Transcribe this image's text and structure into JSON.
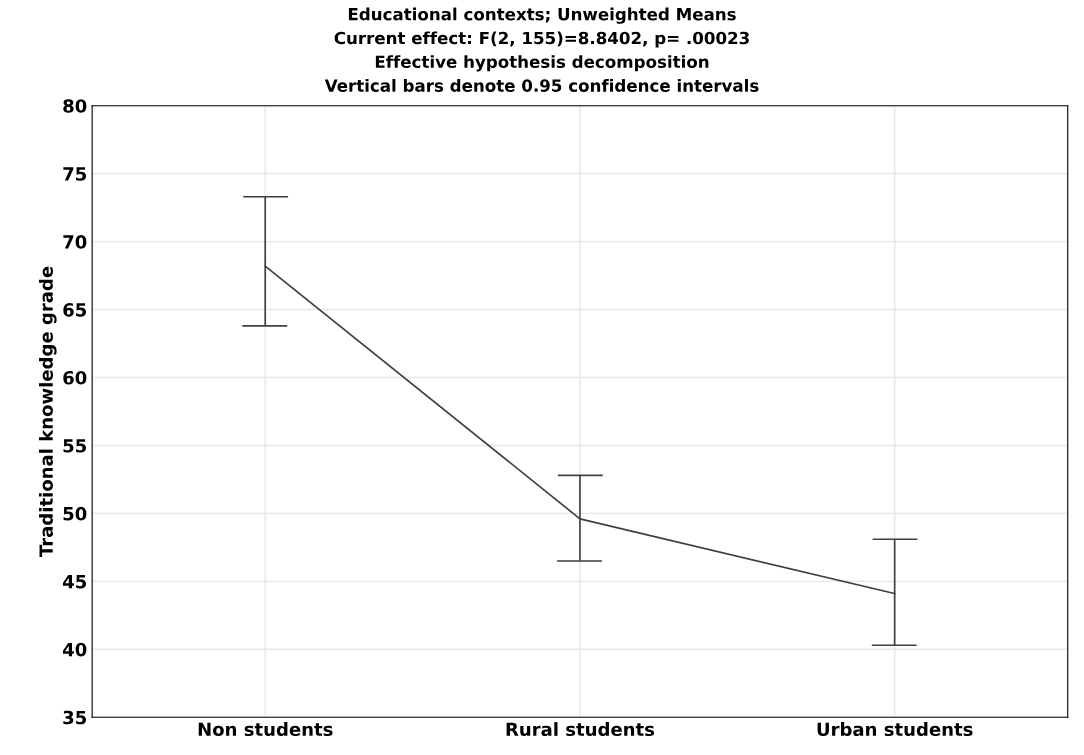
{
  "chart_data": {
    "type": "line",
    "title": "Educational contexts; Unweighted Means\nCurrent effect: F(2, 155)=8.8402, p= .00023\nEffective hypothesis decomposition\nVertical bars denote 0.95 confidence intervals",
    "ylabel": "Traditional knowledge grade",
    "categories": [
      "Non students",
      "Rural students",
      "Urban students"
    ],
    "values": [
      68.2,
      49.6,
      44.1
    ],
    "errors": [
      [
        63.8,
        73.3
      ],
      [
        46.5,
        52.8
      ],
      [
        40.3,
        48.1
      ]
    ],
    "color": "#404040",
    "ylim": [
      35,
      80
    ],
    "yticks": [
      35,
      40,
      45,
      50,
      55,
      60,
      65,
      70,
      75,
      80
    ],
    "grid": true,
    "marker": "none",
    "line_style": "solid"
  }
}
